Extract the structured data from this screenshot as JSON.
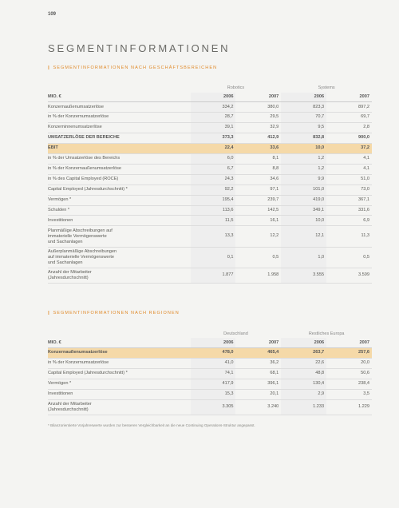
{
  "page_number": "109",
  "title": "SEGMENTINFORMATIONEN",
  "section1": {
    "label": "SEGMENTINFORMATIONEN NACH GESCHÄFTSBEREICHEN",
    "unit": "MIO. €",
    "groups": [
      "Robotics",
      "Systems"
    ],
    "years": [
      "2006",
      "2007",
      "2006",
      "2007"
    ],
    "rows": [
      {
        "label": "Konzernaußenumsatzerlöse",
        "v": [
          "334,2",
          "380,0",
          "823,3",
          "897,2"
        ]
      },
      {
        "label": "in % der Konzernumsatzerlöse",
        "v": [
          "28,7",
          "29,5",
          "70,7",
          "69,7"
        ]
      },
      {
        "label": "Konzerninnenumsatzerlöse",
        "v": [
          "39,1",
          "32,9",
          "9,5",
          "2,8"
        ]
      },
      {
        "label": "UMSATZERLÖSE DER BEREICHE",
        "v": [
          "373,3",
          "412,9",
          "832,8",
          "900,0"
        ],
        "bold": true
      },
      {
        "label": "EBIT",
        "v": [
          "22,4",
          "33,6",
          "10,0",
          "37,2"
        ],
        "hl": true
      },
      {
        "label": "in % der Umsatzerlöse des Bereichs",
        "v": [
          "6,0",
          "8,1",
          "1,2",
          "4,1"
        ]
      },
      {
        "label": "in % der Konzernaußenumsatzerlöse",
        "v": [
          "6,7",
          "8,8",
          "1,2",
          "4,1"
        ]
      },
      {
        "label": "in % des Capital Employed (ROCE)",
        "v": [
          "24,3",
          "34,6",
          "9,9",
          "51,0"
        ]
      },
      {
        "label": "Capital Employed (Jahresdurchschnitt) *",
        "v": [
          "92,2",
          "97,1",
          "101,0",
          "73,0"
        ]
      },
      {
        "label": "Vermögen *",
        "v": [
          "195,4",
          "239,7",
          "419,0",
          "367,1"
        ]
      },
      {
        "label": "Schulden *",
        "v": [
          "113,6",
          "142,5",
          "349,1",
          "331,6"
        ]
      },
      {
        "label": "Investitionen",
        "v": [
          "11,5",
          "16,1",
          "10,0",
          "6,9"
        ]
      },
      {
        "label": "Planmäßige Abschreibungen auf\nimmaterielle Vermögenswerte\nund Sachanlagen",
        "v": [
          "13,3",
          "12,2",
          "12,1",
          "11,3"
        ],
        "multi": true
      },
      {
        "label": "Außerplanmäßige Abschreibungen\nauf immaterielle Vermögenswerte\nund Sachanlagen",
        "v": [
          "0,1",
          "0,5",
          "1,0",
          "0,5"
        ],
        "multi": true
      },
      {
        "label": "Anzahl der Mitarbeiter\n(Jahresdurchschnitt)",
        "v": [
          "1.877",
          "1.958",
          "3.555",
          "3.599"
        ],
        "multi": true
      }
    ]
  },
  "section2": {
    "label": "SEGMENTINFORMATIONEN NACH REGIONEN",
    "unit": "MIO. €",
    "groups": [
      "Deutschland",
      "Restliches Europa"
    ],
    "years": [
      "2006",
      "2007",
      "2006",
      "2007"
    ],
    "rows": [
      {
        "label": "Konzernaußenumsatzerlöse",
        "v": [
          "478,0",
          "465,4",
          "263,7",
          "257,6"
        ],
        "hl": true
      },
      {
        "label": "in % der Konzernumsatzerlöse",
        "v": [
          "41,0",
          "36,2",
          "22,6",
          "20,0"
        ]
      },
      {
        "label": "Capital Employed (Jahresdurchschnitt) *",
        "v": [
          "74,1",
          "68,1",
          "48,8",
          "50,6"
        ]
      },
      {
        "label": "Vermögen *",
        "v": [
          "417,9",
          "396,1",
          "130,4",
          "238,4"
        ]
      },
      {
        "label": "Investitionen",
        "v": [
          "15,3",
          "20,1",
          "2,9",
          "3,5"
        ]
      },
      {
        "label": "Anzahl der Mitarbeiter\n(Jahresdurchschnitt)",
        "v": [
          "3.305",
          "3.240",
          "1.233",
          "1.229"
        ],
        "multi": true
      }
    ]
  },
  "footnote": "* Bilanzorientierte Vorjahreswerte wurden zur besseren Vergleichbarkeit an die neue Continuing Operations-Struktur angepasst.",
  "colors": {
    "accent": "#e08a2a",
    "highlight_bg": "#f5d9a8",
    "col2006_bg": "#eeeeee",
    "page_bg": "#f4f4f2"
  }
}
